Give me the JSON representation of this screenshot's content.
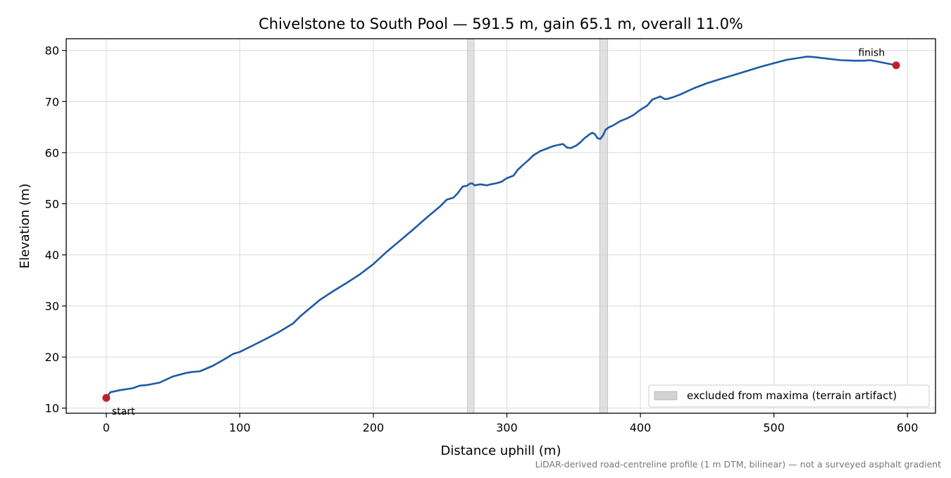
{
  "chart_data": {
    "type": "line",
    "title": "Chivelstone to South Pool — 591.5 m, gain 65.1 m, overall 11.0%",
    "xlabel": "Distance uphill (m)",
    "ylabel": "Elevation (m)",
    "xlim": [
      -30,
      621
    ],
    "ylim": [
      9.0,
      82.3
    ],
    "xticks": [
      0,
      100,
      200,
      300,
      400,
      500,
      600
    ],
    "yticks": [
      10,
      20,
      30,
      40,
      50,
      60,
      70,
      80
    ],
    "grid": true,
    "legend": {
      "position": "bottom-right",
      "entries": [
        "excluded from maxima (terrain artifact)"
      ]
    },
    "footnote": "LiDAR-derived road-centreline profile (1 m DTM, bilinear) — not a surveyed asphalt gradient",
    "excluded_ranges": [
      [
        270.5,
        275.5
      ],
      [
        369.5,
        375.5
      ]
    ],
    "series": [
      {
        "x": [
          0,
          3,
          10,
          20,
          25,
          30,
          40,
          50,
          60,
          65,
          70,
          80,
          90,
          95,
          100,
          110,
          120,
          130,
          140,
          145,
          150,
          160,
          170,
          180,
          190,
          200,
          210,
          220,
          230,
          240,
          250,
          255,
          260,
          263,
          267,
          270,
          272,
          274,
          276,
          280,
          285,
          288,
          292,
          296,
          300,
          305,
          308,
          312,
          316,
          320,
          325,
          330,
          335,
          342,
          345,
          348,
          352,
          355,
          358,
          362,
          364,
          366,
          368,
          370,
          372,
          374,
          376,
          380,
          385,
          390,
          395,
          400,
          405,
          409,
          412,
          415,
          418,
          420,
          425,
          430,
          440,
          450,
          460,
          470,
          480,
          490,
          500,
          510,
          520,
          525,
          530,
          540,
          550,
          560,
          568,
          572,
          580,
          591.5
        ],
        "y": [
          12.0,
          13.1,
          13.5,
          13.9,
          14.4,
          14.5,
          15.0,
          16.2,
          16.9,
          17.1,
          17.2,
          18.3,
          19.8,
          20.6,
          21.0,
          22.3,
          23.6,
          25.0,
          26.6,
          27.9,
          29.0,
          31.2,
          32.9,
          34.5,
          36.2,
          38.2,
          40.6,
          42.8,
          45.0,
          47.3,
          49.5,
          50.8,
          51.2,
          52.0,
          53.4,
          53.5,
          53.9,
          54.0,
          53.6,
          53.8,
          53.6,
          53.8,
          54.0,
          54.3,
          55.0,
          55.5,
          56.6,
          57.6,
          58.5,
          59.5,
          60.3,
          60.8,
          61.3,
          61.7,
          61.0,
          60.9,
          61.4,
          62.0,
          62.8,
          63.6,
          63.9,
          63.6,
          62.8,
          62.7,
          63.4,
          64.5,
          64.9,
          65.4,
          66.2,
          66.7,
          67.4,
          68.4,
          69.2,
          70.4,
          70.7,
          71.0,
          70.5,
          70.5,
          70.9,
          71.4,
          72.6,
          73.6,
          74.4,
          75.2,
          76.0,
          76.8,
          77.5,
          78.2,
          78.6,
          78.8,
          78.7,
          78.4,
          78.1,
          78.0,
          78.0,
          78.1,
          77.7,
          77.1
        ]
      }
    ],
    "annotations": [
      {
        "text": "start",
        "x": 0,
        "y": 12.0
      },
      {
        "text": "finish",
        "x": 591.5,
        "y": 77.1
      }
    ],
    "colors": {
      "line": "#1f5aa6",
      "markers": "#c1202b",
      "excluded": "#d3d3d3",
      "grid": "#dcdcdc",
      "footnote": "#777777"
    }
  }
}
